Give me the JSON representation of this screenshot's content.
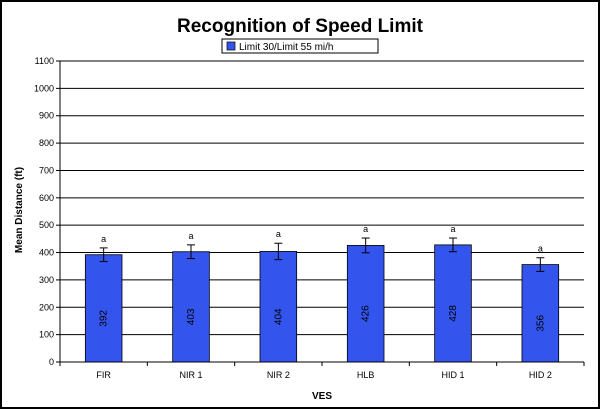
{
  "chart_data": {
    "type": "bar",
    "title": "Recognition of Speed Limit",
    "xlabel": "VES",
    "ylabel": "Mean Distance (ft)",
    "ylim": [
      0,
      1100
    ],
    "ytick_step": 100,
    "grid": true,
    "legend_position": "top-center",
    "categories": [
      "FIR",
      "NIR 1",
      "NIR 2",
      "HLB",
      "HID 1",
      "HID 2"
    ],
    "series": [
      {
        "name": "Limit 30/Limit 55 mi/h",
        "color": "#3355ee",
        "values": [
          392,
          403,
          404,
          426,
          428,
          356
        ],
        "value_labels": [
          "392",
          "403",
          "404",
          "426",
          "428",
          "356"
        ],
        "error": [
          25,
          25,
          30,
          27,
          25,
          25
        ],
        "significance": [
          "a",
          "a",
          "a",
          "a",
          "a",
          "a"
        ]
      }
    ]
  }
}
